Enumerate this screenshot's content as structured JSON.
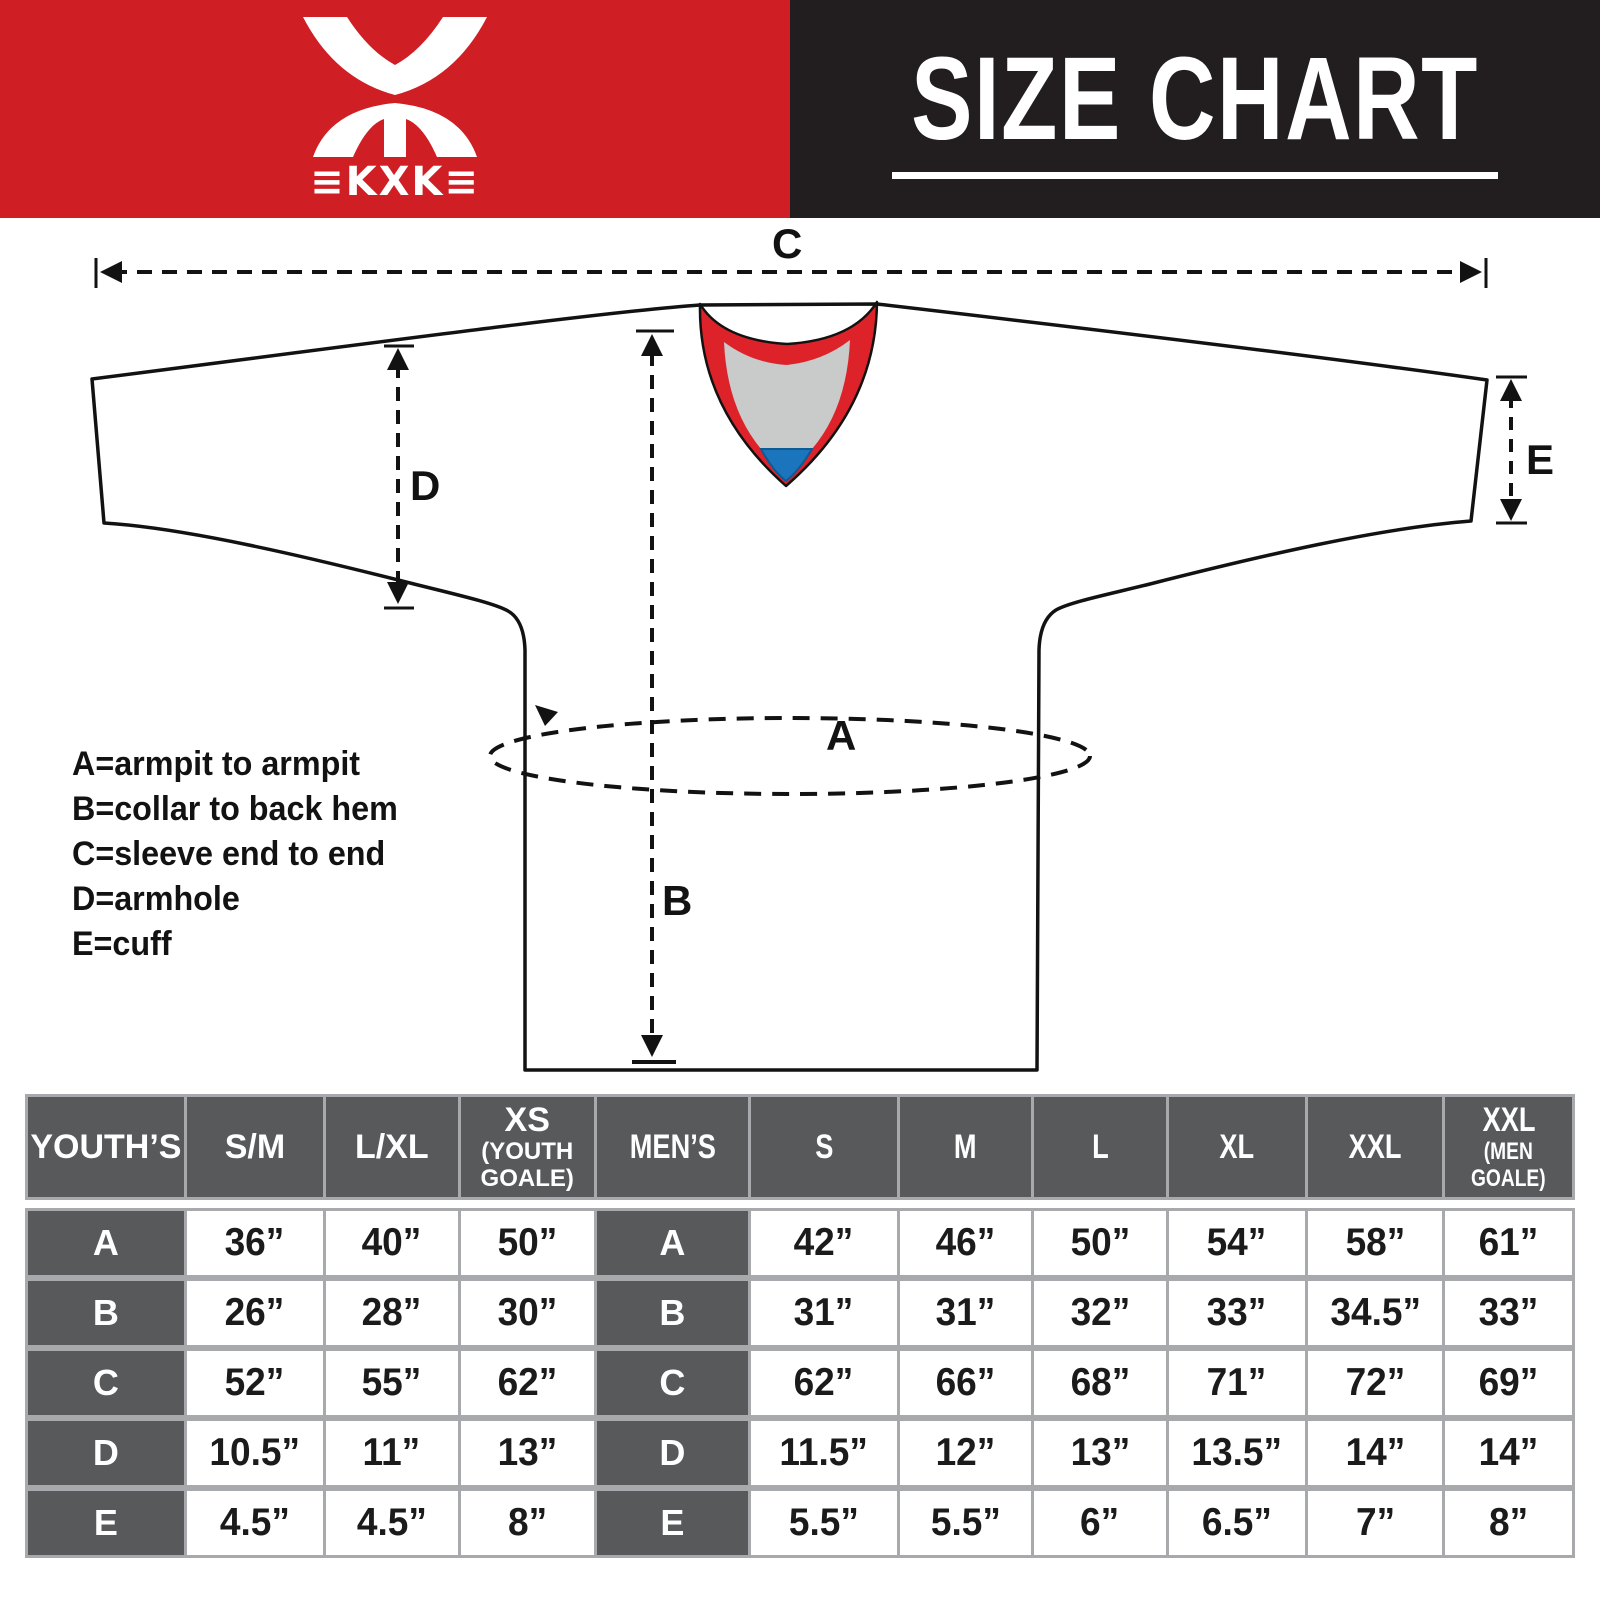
{
  "brand": {
    "logo_text": "≡KXK≡",
    "title": "SIZE CHART"
  },
  "diagram": {
    "labels": {
      "A": "A",
      "B": "B",
      "C": "C",
      "D": "D",
      "E": "E"
    },
    "legend": [
      "A=armpit to armpit",
      "B=collar to back hem",
      "C=sleeve end to end",
      "D=armhole",
      "E=cuff"
    ],
    "colors": {
      "collar_red": "#dd2329",
      "collar_gray": "#c9caca",
      "collar_blue": "#1b75bc",
      "line": "#121212"
    }
  },
  "colors": {
    "banner_red": "#cf1e24",
    "banner_black": "#221e1f",
    "table_header_gray": "#58595b",
    "table_divider_gray": "#a7a9ac"
  },
  "size_table": {
    "sections": [
      {
        "name": "YOUTH’S",
        "condensed": false,
        "columns": [
          {
            "label": "S/M",
            "sub": ""
          },
          {
            "label": "L/XL",
            "sub": ""
          },
          {
            "label": "XS",
            "sub": "(YOUTH GOALE)"
          }
        ]
      },
      {
        "name": "MEN’S",
        "condensed": true,
        "columns": [
          {
            "label": "S",
            "sub": ""
          },
          {
            "label": "M",
            "sub": ""
          },
          {
            "label": "L",
            "sub": ""
          },
          {
            "label": "XL",
            "sub": ""
          },
          {
            "label": "XXL",
            "sub": ""
          },
          {
            "label": "XXL",
            "sub": "(MEN GOALE)"
          }
        ]
      }
    ],
    "rows": [
      {
        "label": "A",
        "youth": [
          "36”",
          "40”",
          "50”"
        ],
        "men": [
          "42”",
          "46”",
          "50”",
          "54”",
          "58”",
          "61”"
        ]
      },
      {
        "label": "B",
        "youth": [
          "26”",
          "28”",
          "30”"
        ],
        "men": [
          "31”",
          "31”",
          "32”",
          "33”",
          "34.5”",
          "33”"
        ]
      },
      {
        "label": "C",
        "youth": [
          "52”",
          "55”",
          "62”"
        ],
        "men": [
          "62”",
          "66”",
          "68”",
          "71”",
          "72”",
          "69”"
        ]
      },
      {
        "label": "D",
        "youth": [
          "10.5”",
          "11”",
          "13”"
        ],
        "men": [
          "11.5”",
          "12”",
          "13”",
          "13.5”",
          "14”",
          "14”"
        ]
      },
      {
        "label": "E",
        "youth": [
          "4.5”",
          "4.5”",
          "8”"
        ],
        "men": [
          "5.5”",
          "5.5”",
          "6”",
          "6.5”",
          "7”",
          "8”"
        ]
      }
    ]
  }
}
